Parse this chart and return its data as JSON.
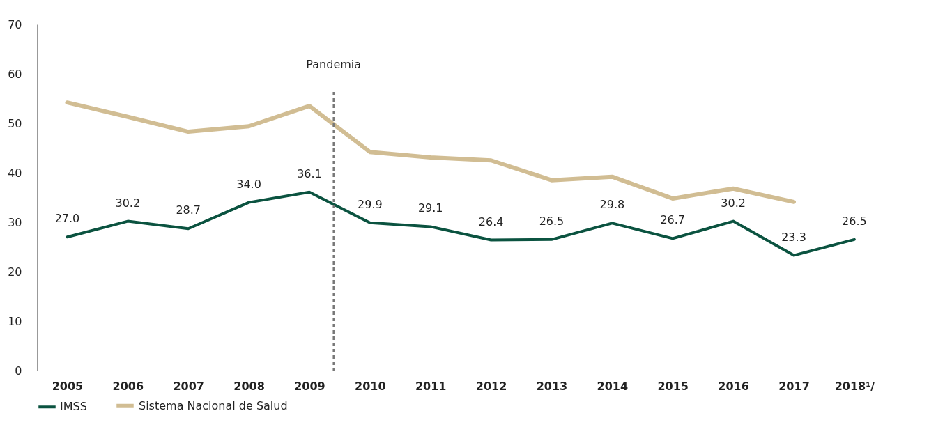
{
  "chart_data": {
    "type": "line",
    "x": [
      2005,
      2006,
      2007,
      2008,
      2009,
      2010,
      2011,
      2012,
      2013,
      2014,
      2015,
      2016,
      2017,
      2018
    ],
    "xlim": [
      2004.5,
      2018.6
    ],
    "xticks": [
      2005,
      2006,
      2007,
      2008,
      2009,
      2010,
      2011,
      2012,
      2013,
      2014,
      2015,
      2016,
      2017,
      {
        "value": 2018,
        "label": "2018¹/"
      }
    ],
    "ylim": [
      0,
      70
    ],
    "yticks": [
      0,
      10,
      20,
      30,
      40,
      50,
      60,
      70
    ],
    "series": [
      {
        "name": "IMSS",
        "color": "#0b5340",
        "values": [
          27.0,
          30.2,
          28.7,
          34.0,
          36.1,
          29.9,
          29.1,
          26.4,
          26.5,
          29.8,
          26.7,
          30.2,
          23.3,
          26.5
        ],
        "value_labels": [
          "27.0",
          "30.2",
          "28.7",
          "34.0",
          "36.1",
          "29.9",
          "29.1",
          "26.4",
          "26.5",
          "29.8",
          "26.7",
          "30.2",
          "23.3",
          "26.5"
        ]
      },
      {
        "name": "Sistema Nacional de Salud",
        "color": "#d1bd93",
        "values": [
          54.2,
          51.3,
          48.3,
          49.4,
          53.5,
          44.2,
          43.1,
          42.5,
          38.5,
          39.2,
          34.8,
          36.8,
          34.1,
          null
        ]
      }
    ],
    "ref_lines": [
      {
        "axis": "x",
        "value": 2009.4,
        "label": "Pandemia",
        "color": "#777777",
        "line_style": "dashed"
      }
    ],
    "grid": false,
    "legend": "bottom left",
    "marker": "none",
    "line_style": "solid"
  }
}
